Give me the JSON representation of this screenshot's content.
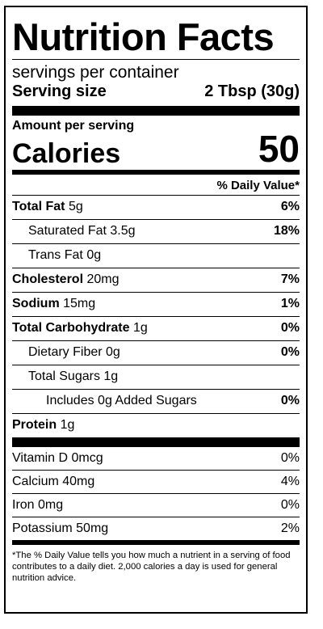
{
  "title": "Nutrition Facts",
  "servings_per_container": "servings per container",
  "serving_size": {
    "label": "Serving size",
    "value": "2 Tbsp (30g)"
  },
  "amount_per_serving": "Amount per serving",
  "calories": {
    "label": "Calories",
    "value": "50"
  },
  "daily_value_header": "% Daily Value*",
  "nutrients": [
    {
      "name": "Total Fat",
      "amount": "5g",
      "dv": "6%",
      "bold": true,
      "indent": 0
    },
    {
      "name": "Saturated Fat",
      "amount": "3.5g",
      "dv": "18%",
      "bold": false,
      "indent": 1
    },
    {
      "name": "Trans Fat",
      "amount": "0g",
      "dv": "",
      "bold": false,
      "indent": 1
    },
    {
      "name": "Cholesterol",
      "amount": "20mg",
      "dv": "7%",
      "bold": true,
      "indent": 0
    },
    {
      "name": "Sodium",
      "amount": "15mg",
      "dv": "1%",
      "bold": true,
      "indent": 0
    },
    {
      "name": "Total Carbohydrate",
      "amount": "1g",
      "dv": "0%",
      "bold": true,
      "indent": 0
    },
    {
      "name": "Dietary Fiber",
      "amount": "0g",
      "dv": "0%",
      "bold": false,
      "indent": 1
    },
    {
      "name": "Total Sugars",
      "amount": "1g",
      "dv": "",
      "bold": false,
      "indent": 1
    },
    {
      "name": "Includes 0g Added Sugars",
      "amount": "",
      "dv": "0%",
      "bold": false,
      "indent": 2
    },
    {
      "name": "Protein",
      "amount": "1g",
      "dv": "",
      "bold": true,
      "indent": 0
    }
  ],
  "vitamins": [
    {
      "name": "Vitamin D 0mcg",
      "dv": "0%"
    },
    {
      "name": "Calcium 40mg",
      "dv": "4%"
    },
    {
      "name": "Iron 0mg",
      "dv": "0%"
    },
    {
      "name": "Potassium 50mg",
      "dv": "2%"
    }
  ],
  "footnote": "*The % Daily Value tells you how much a nutrient in a serving of food contributes to a daily diet. 2,000 calories a day is used for general nutrition advice."
}
